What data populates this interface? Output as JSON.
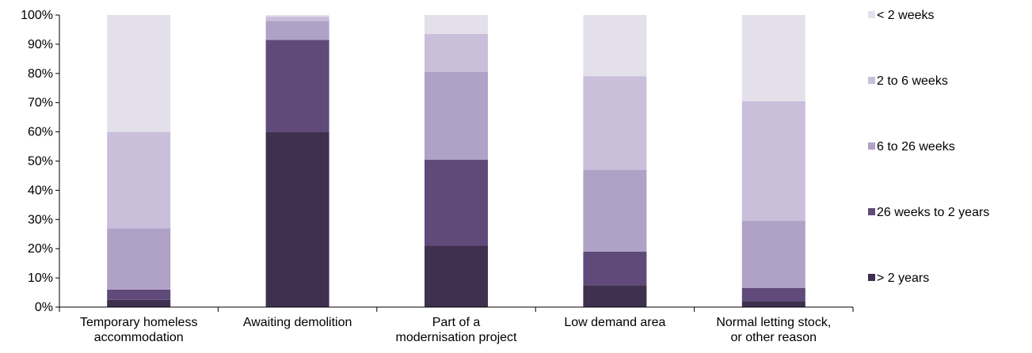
{
  "chart_data": {
    "type": "bar",
    "stacked": true,
    "percent": true,
    "categories": [
      [
        "Temporary homeless",
        "accommodation"
      ],
      [
        "Awaiting demolition"
      ],
      [
        "Part of a",
        "modernisation project"
      ],
      [
        "Low demand area"
      ],
      [
        "Normal letting stock,",
        "or other reason"
      ]
    ],
    "series": [
      {
        "name": "> 2 years",
        "color": "#3f3050",
        "values": [
          2.5,
          60,
          21,
          7.5,
          2
        ]
      },
      {
        "name": "26 weeks to 2 years",
        "color": "#5f4a7a",
        "values": [
          3.5,
          31.5,
          29.5,
          11.5,
          4.5
        ]
      },
      {
        "name": "6 to 26 weeks",
        "color": "#b0a1c7",
        "values": [
          21,
          6.5,
          30,
          28,
          23
        ]
      },
      {
        "name": "2 to 6 weeks",
        "color": "#c9bfdb",
        "values": [
          33,
          1.5,
          13,
          32,
          41
        ]
      },
      {
        "name": "< 2 weeks",
        "color": "#e3dfeb",
        "values": [
          40,
          0.5,
          6.5,
          21,
          29.5
        ]
      }
    ],
    "legend_order": [
      "< 2 weeks",
      "2 to 6 weeks",
      "6 to 26 weeks",
      "26 weeks to 2 years",
      "> 2 years"
    ],
    "ylim": [
      0,
      100
    ],
    "yticks": [
      "0%",
      "10%",
      "20%",
      "30%",
      "40%",
      "50%",
      "60%",
      "70%",
      "80%",
      "90%",
      "100%"
    ],
    "grid": false,
    "legend_position": "right"
  }
}
